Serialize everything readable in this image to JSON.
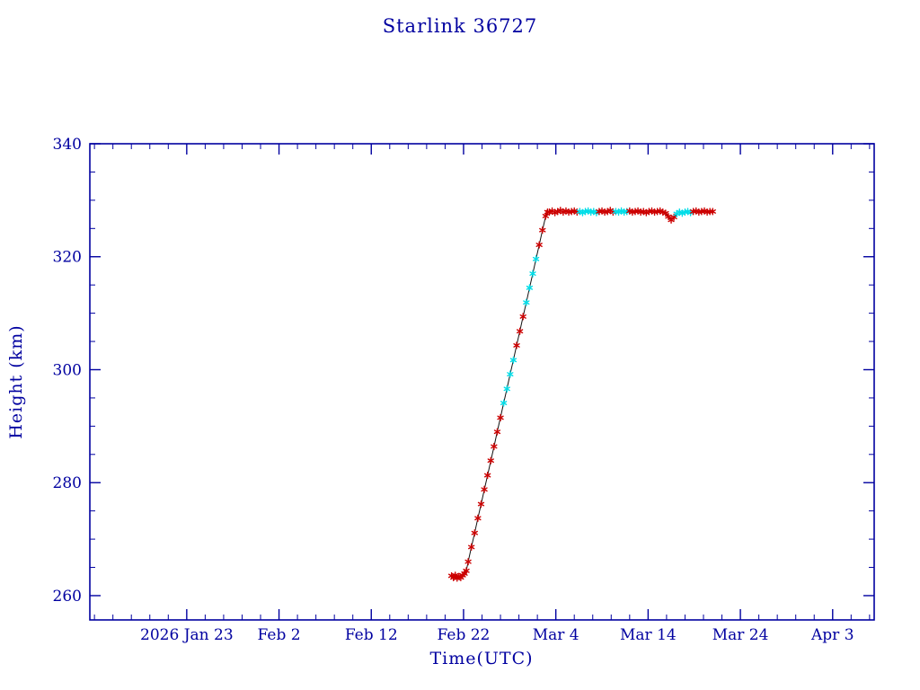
{
  "chart_data": {
    "type": "line",
    "title": "Starlink 36727",
    "xlabel": "Time(UTC)",
    "ylabel": "Height (km)",
    "legend": "none",
    "grid": false,
    "xlim": [
      12.5,
      97.5
    ],
    "ylim": [
      255.7,
      340
    ],
    "x_axis": {
      "unit": "day of year 2026",
      "tick_values": [
        23,
        33,
        43,
        53,
        63,
        73,
        83,
        93
      ],
      "tick_labels": [
        "2026 Jan 23",
        "Feb 2",
        "Feb 12",
        "Feb 22",
        "Mar 4",
        "Mar 14",
        "Mar 24",
        "Apr 3"
      ],
      "minor_step": 2
    },
    "y_axis": {
      "tick_values": [
        260,
        280,
        300,
        320,
        340
      ],
      "tick_labels": [
        "260",
        "280",
        "300",
        "320",
        "340"
      ],
      "minor_step": 5
    },
    "series": [
      {
        "name": "height (red asterisk markers)",
        "marker": "asterisk",
        "color": "#cc0000"
      },
      {
        "name": "height (cyan asterisk markers)",
        "marker": "asterisk",
        "color": "#00dde8"
      }
    ],
    "colors": {
      "axis": "#0000a0",
      "text": "#0000a0",
      "line": "#101010",
      "red": "#cc0000",
      "cyan": "#00dde8",
      "background": "#ffffff"
    },
    "point_format": [
      "day_of_year_2026",
      "height_km",
      "marker_color (r=red, c=cyan)"
    ],
    "points": [
      [
        51.7,
        263.5,
        "r"
      ],
      [
        51.9,
        263.2,
        "r"
      ],
      [
        52.1,
        263.6,
        "r"
      ],
      [
        52.3,
        263.1,
        "r"
      ],
      [
        52.5,
        263.4,
        "r"
      ],
      [
        52.7,
        263.2,
        "r"
      ],
      [
        52.9,
        263.6,
        "r"
      ],
      [
        53.1,
        263.9,
        "r"
      ],
      [
        53.3,
        264.4,
        "r"
      ],
      [
        53.5,
        266.0,
        "r"
      ],
      [
        53.85,
        268.6,
        "r"
      ],
      [
        54.2,
        271.1,
        "r"
      ],
      [
        54.55,
        273.7,
        "r"
      ],
      [
        54.9,
        276.2,
        "r"
      ],
      [
        55.25,
        278.8,
        "r"
      ],
      [
        55.6,
        281.3,
        "r"
      ],
      [
        55.95,
        283.9,
        "r"
      ],
      [
        56.3,
        286.4,
        "r"
      ],
      [
        56.65,
        289.0,
        "r"
      ],
      [
        57.0,
        291.5,
        "r"
      ],
      [
        57.35,
        294.1,
        "c"
      ],
      [
        57.7,
        296.6,
        "c"
      ],
      [
        58.05,
        299.2,
        "c"
      ],
      [
        58.4,
        301.7,
        "c"
      ],
      [
        58.75,
        304.3,
        "r"
      ],
      [
        59.1,
        306.8,
        "r"
      ],
      [
        59.45,
        309.4,
        "r"
      ],
      [
        59.8,
        311.9,
        "c"
      ],
      [
        60.15,
        314.5,
        "c"
      ],
      [
        60.5,
        317.0,
        "c"
      ],
      [
        60.85,
        319.6,
        "c"
      ],
      [
        61.2,
        322.1,
        "r"
      ],
      [
        61.55,
        324.7,
        "r"
      ],
      [
        61.9,
        327.2,
        "r"
      ],
      [
        62.1,
        327.9,
        "r"
      ],
      [
        62.3,
        327.9,
        "r"
      ],
      [
        62.6,
        328.1,
        "r"
      ],
      [
        62.9,
        327.8,
        "r"
      ],
      [
        63.2,
        328.0,
        "r"
      ],
      [
        63.5,
        328.2,
        "r"
      ],
      [
        63.8,
        327.9,
        "r"
      ],
      [
        64.1,
        328.1,
        "r"
      ],
      [
        64.4,
        327.9,
        "r"
      ],
      [
        64.7,
        328.0,
        "r"
      ],
      [
        65.0,
        328.1,
        "r"
      ],
      [
        65.3,
        327.9,
        "r"
      ],
      [
        65.6,
        328.0,
        "c"
      ],
      [
        65.9,
        327.8,
        "c"
      ],
      [
        66.2,
        328.0,
        "c"
      ],
      [
        66.5,
        328.1,
        "c"
      ],
      [
        66.8,
        327.9,
        "c"
      ],
      [
        67.1,
        328.0,
        "c"
      ],
      [
        67.4,
        327.8,
        "c"
      ],
      [
        67.7,
        328.0,
        "r"
      ],
      [
        68.0,
        328.1,
        "r"
      ],
      [
        68.3,
        327.9,
        "r"
      ],
      [
        68.6,
        328.0,
        "r"
      ],
      [
        68.9,
        328.2,
        "r"
      ],
      [
        69.2,
        327.9,
        "r"
      ],
      [
        69.5,
        328.0,
        "c"
      ],
      [
        69.8,
        327.9,
        "c"
      ],
      [
        70.1,
        328.1,
        "c"
      ],
      [
        70.4,
        327.9,
        "c"
      ],
      [
        70.7,
        328.0,
        "c"
      ],
      [
        71.0,
        328.1,
        "r"
      ],
      [
        71.3,
        327.9,
        "r"
      ],
      [
        71.6,
        328.0,
        "r"
      ],
      [
        71.9,
        328.1,
        "r"
      ],
      [
        72.2,
        327.9,
        "r"
      ],
      [
        72.5,
        328.0,
        "r"
      ],
      [
        72.8,
        327.8,
        "r"
      ],
      [
        73.1,
        328.0,
        "r"
      ],
      [
        73.4,
        328.1,
        "r"
      ],
      [
        73.7,
        327.9,
        "r"
      ],
      [
        74.0,
        328.0,
        "r"
      ],
      [
        74.3,
        328.1,
        "r"
      ],
      [
        74.6,
        327.9,
        "r"
      ],
      [
        74.9,
        327.7,
        "r"
      ],
      [
        75.2,
        327.1,
        "r"
      ],
      [
        75.5,
        326.5,
        "r"
      ],
      [
        75.8,
        327.0,
        "r"
      ],
      [
        76.1,
        327.6,
        "c"
      ],
      [
        76.4,
        327.9,
        "c"
      ],
      [
        76.7,
        327.7,
        "c"
      ],
      [
        77.0,
        327.9,
        "c"
      ],
      [
        77.3,
        328.0,
        "c"
      ],
      [
        77.6,
        327.8,
        "c"
      ],
      [
        77.9,
        328.0,
        "r"
      ],
      [
        78.2,
        328.1,
        "r"
      ],
      [
        78.5,
        327.9,
        "r"
      ],
      [
        78.8,
        328.0,
        "r"
      ],
      [
        79.1,
        328.1,
        "r"
      ],
      [
        79.4,
        327.9,
        "r"
      ],
      [
        79.7,
        328.0,
        "r"
      ],
      [
        80.0,
        328.0,
        "r"
      ]
    ]
  }
}
